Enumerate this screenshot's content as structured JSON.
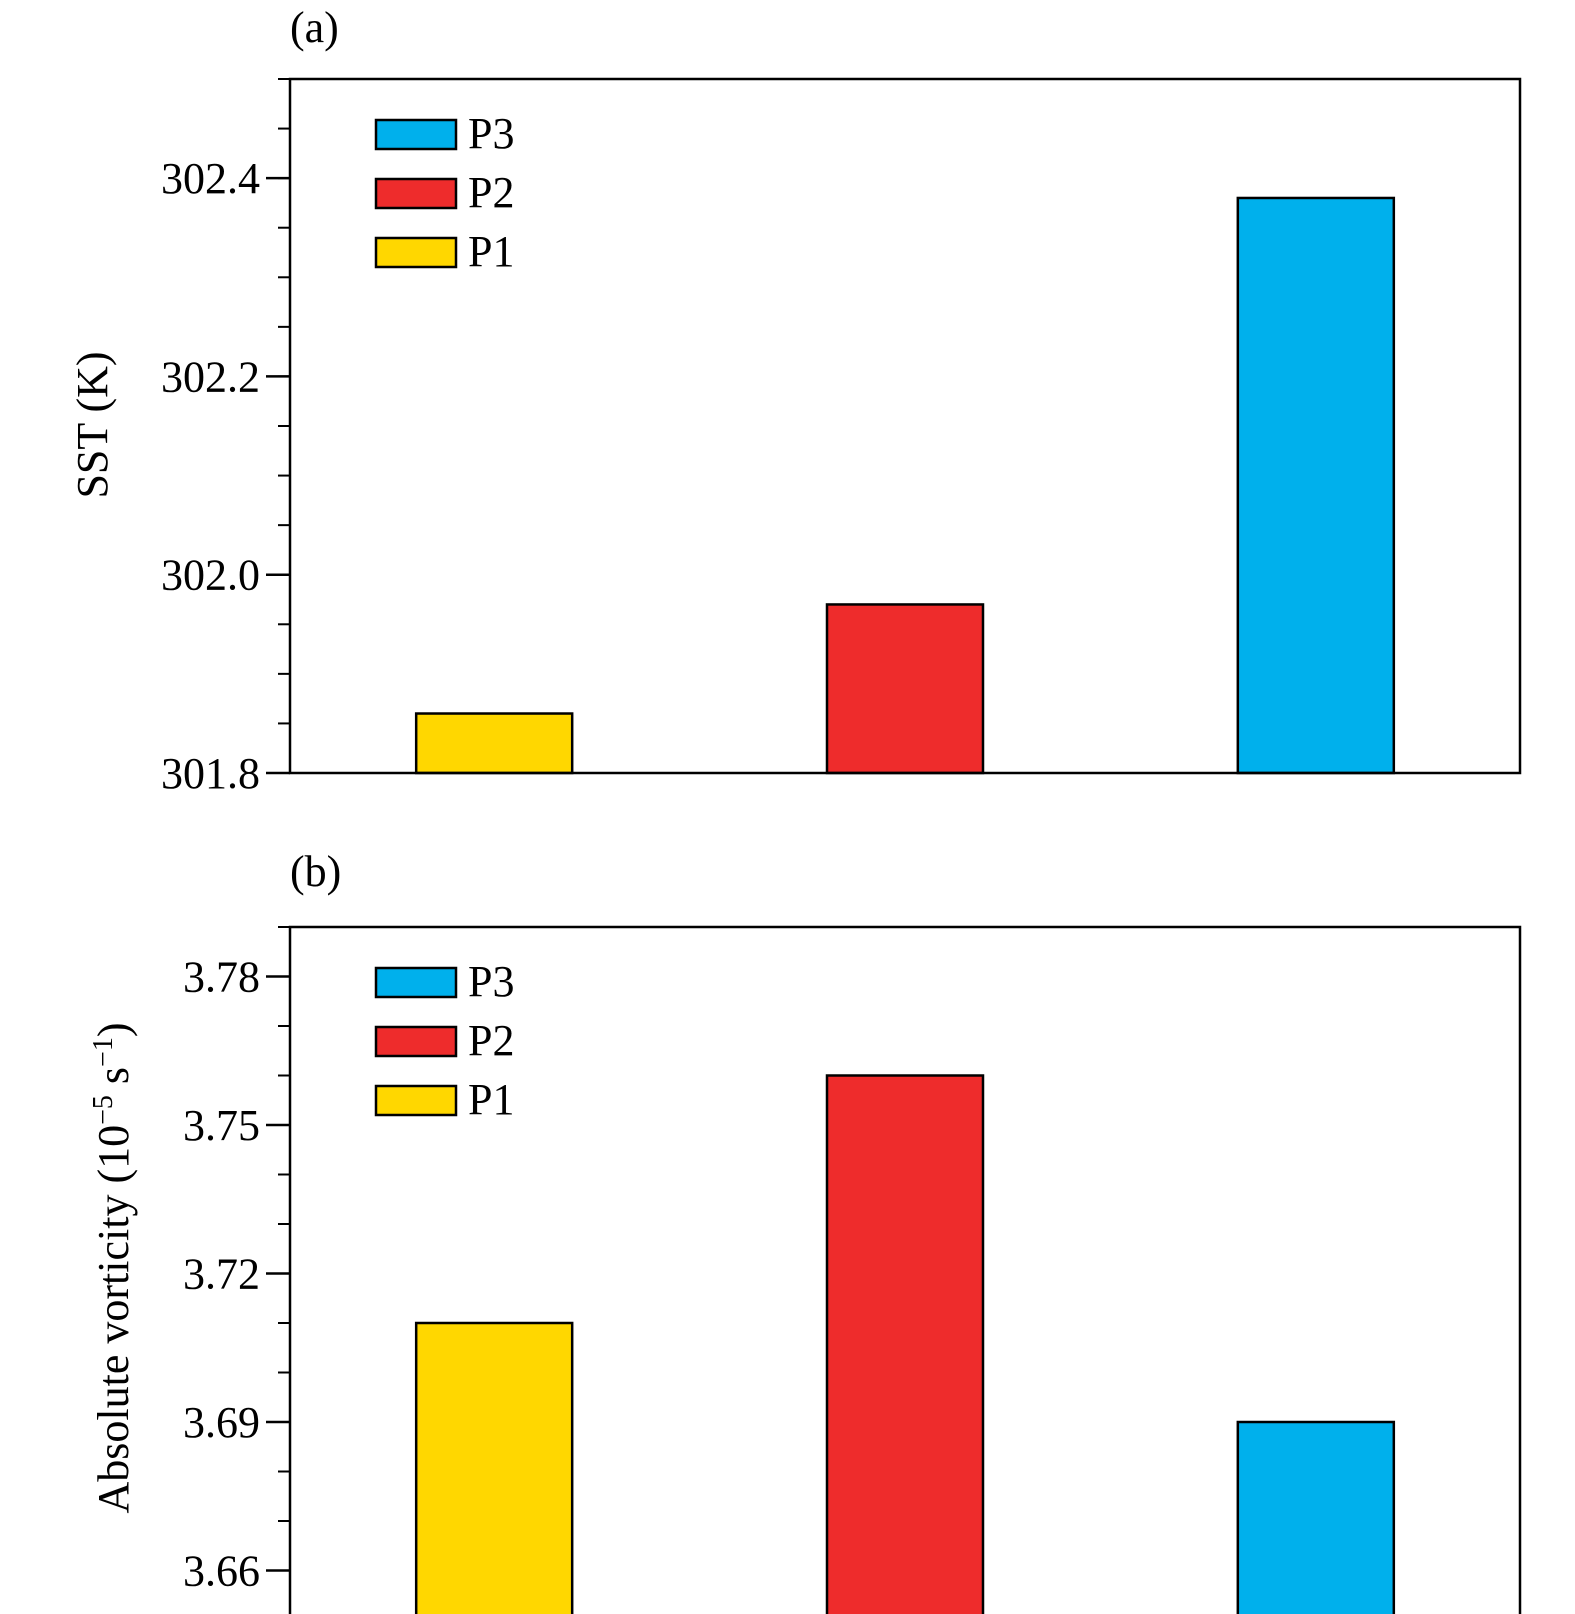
{
  "chart_data": [
    {
      "type": "bar",
      "panel_label": "(a)",
      "ylabel": "SST (K)",
      "categories": [
        "P1",
        "P2",
        "P3"
      ],
      "values": [
        301.86,
        301.97,
        302.38
      ],
      "ylim": [
        301.8,
        302.5
      ],
      "yticks": [
        301.8,
        302.0,
        302.2,
        302.4
      ],
      "ytick_labels": [
        "301.8",
        "302.0",
        "302.2",
        "302.4"
      ],
      "minor_tick_step": 0.05,
      "legend": {
        "position": "top-left",
        "entries": [
          "P3",
          "P2",
          "P1"
        ]
      },
      "grid": false
    },
    {
      "type": "bar",
      "panel_label": "(b)",
      "ylabel": "Absolute vorticity (10",
      "ylabel_exp1": "−5",
      "ylabel_mid": " s",
      "ylabel_exp2": "−1",
      "ylabel_end": ")",
      "categories": [
        "P1",
        "P2",
        "P3"
      ],
      "values": [
        3.71,
        3.76,
        3.69
      ],
      "ylim": [
        3.65,
        3.79
      ],
      "yticks": [
        3.66,
        3.69,
        3.72,
        3.75,
        3.78
      ],
      "ytick_labels": [
        "3.66",
        "3.69",
        "3.72",
        "3.75",
        "3.78"
      ],
      "minor_tick_step": 0.01,
      "legend": {
        "position": "top-left",
        "entries": [
          "P3",
          "P2",
          "P1"
        ]
      },
      "grid": false
    }
  ],
  "colors": {
    "P1": "#ffd700",
    "P2": "#ee2c2c",
    "P3": "#00b0ec"
  }
}
